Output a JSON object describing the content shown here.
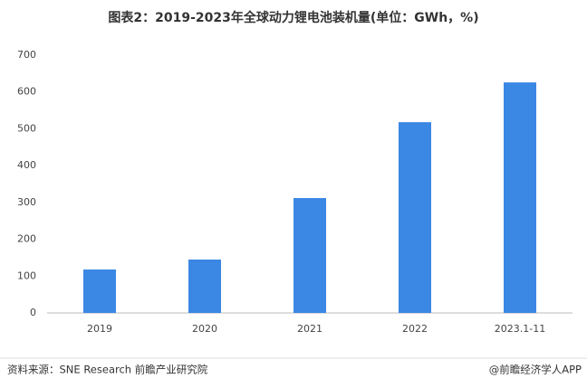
{
  "chart_data": {
    "type": "bar",
    "title": "图表2：2019-2023年全球动力锂电池装机量(单位：GWh，%)",
    "categories": [
      "2019",
      "2020",
      "2021",
      "2022",
      "2023.1-11"
    ],
    "values": [
      118,
      145,
      312,
      518,
      626
    ],
    "color": "#3b87e4",
    "ylim": [
      0,
      700
    ],
    "yticks": [
      0,
      100,
      200,
      300,
      400,
      500,
      600,
      700
    ],
    "grid": false,
    "source": "资料来源：SNE Research 前瞻产业研究院",
    "footer": "@前瞻经济学人APP"
  }
}
